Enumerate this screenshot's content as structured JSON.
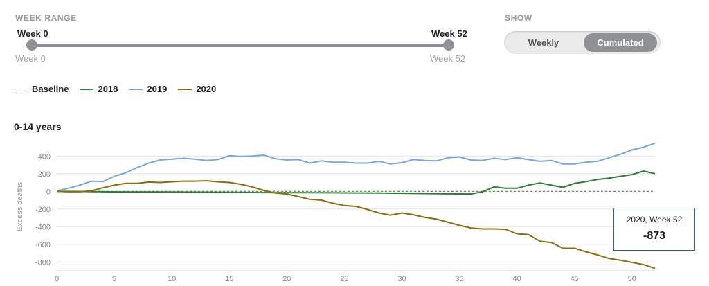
{
  "controls": {
    "week_range_label": "WEEK RANGE",
    "show_label": "SHOW",
    "slider": {
      "min_top": "Week 0",
      "max_top": "Week 52",
      "min_bottom": "Week 0",
      "max_bottom": "Week 52",
      "min_value": 0,
      "max_value": 52
    },
    "toggle": {
      "weekly": "Weekly",
      "cumulated": "Cumulated",
      "selected": "Cumulated"
    }
  },
  "legend": [
    {
      "label": "Baseline",
      "color": "#555555",
      "style": "dashed"
    },
    {
      "label": "2018",
      "color": "#2e7d32",
      "style": "solid"
    },
    {
      "label": "2019",
      "color": "#7aa6dc",
      "style": "solid"
    },
    {
      "label": "2020",
      "color": "#8a6d12",
      "style": "solid"
    }
  ],
  "chart_title": "0-14 years",
  "tooltip": {
    "title": "2020, Week 52",
    "value": "-873"
  },
  "chart_data": {
    "type": "line",
    "title": "0-14 years",
    "xlabel": "",
    "ylabel": "Excess deaths",
    "xlim": [
      0,
      52
    ],
    "ylim": [
      -900,
      520
    ],
    "x_ticks": [
      0,
      5,
      10,
      15,
      20,
      25,
      30,
      35,
      40,
      45,
      50
    ],
    "y_ticks": [
      400,
      200,
      0,
      -200,
      -400,
      -600,
      -800
    ],
    "grid": true,
    "baseline": 0,
    "series": [
      {
        "name": "2018",
        "color": "#2e7d32",
        "x": [
          0,
          2,
          4,
          6,
          8,
          10,
          12,
          14,
          16,
          18,
          20,
          22,
          24,
          26,
          28,
          30,
          32,
          34,
          36,
          37,
          38,
          39,
          40,
          41,
          42,
          43,
          44,
          45,
          46,
          47,
          48,
          49,
          50,
          51,
          52
        ],
        "values": [
          0,
          -2,
          -5,
          -7,
          -8,
          -9,
          -10,
          -12,
          -13,
          -14,
          -15,
          -16,
          -17,
          -18,
          -20,
          -22,
          -25,
          -28,
          -30,
          -5,
          50,
          35,
          35,
          70,
          95,
          70,
          45,
          90,
          110,
          135,
          150,
          170,
          190,
          230,
          200
        ]
      },
      {
        "name": "2019",
        "color": "#7aa6dc",
        "x": [
          0,
          1,
          2,
          3,
          4,
          5,
          6,
          7,
          8,
          9,
          10,
          11,
          12,
          13,
          14,
          15,
          16,
          17,
          18,
          19,
          20,
          21,
          22,
          23,
          24,
          25,
          26,
          27,
          28,
          29,
          30,
          31,
          32,
          33,
          34,
          35,
          36,
          37,
          38,
          39,
          40,
          41,
          42,
          43,
          44,
          45,
          46,
          47,
          48,
          49,
          50,
          51,
          52
        ],
        "values": [
          5,
          35,
          70,
          115,
          110,
          170,
          210,
          270,
          320,
          355,
          365,
          375,
          365,
          350,
          360,
          405,
          395,
          400,
          410,
          370,
          355,
          360,
          320,
          345,
          330,
          330,
          320,
          320,
          340,
          310,
          325,
          360,
          350,
          345,
          380,
          390,
          355,
          350,
          375,
          360,
          380,
          360,
          340,
          350,
          310,
          310,
          330,
          340,
          380,
          420,
          470,
          500,
          545
        ]
      },
      {
        "name": "2020",
        "color": "#8a6d12",
        "x": [
          0,
          1,
          2,
          3,
          4,
          5,
          6,
          7,
          8,
          9,
          10,
          11,
          12,
          13,
          14,
          15,
          16,
          17,
          18,
          19,
          20,
          21,
          22,
          23,
          24,
          25,
          26,
          27,
          28,
          29,
          30,
          31,
          32,
          33,
          34,
          35,
          36,
          37,
          38,
          39,
          40,
          41,
          42,
          43,
          44,
          45,
          46,
          47,
          48,
          49,
          50,
          51,
          52
        ],
        "values": [
          0,
          -5,
          -5,
          5,
          40,
          70,
          90,
          90,
          105,
          100,
          108,
          115,
          115,
          120,
          108,
          100,
          80,
          50,
          10,
          -20,
          -30,
          -60,
          -90,
          -100,
          -135,
          -160,
          -170,
          -205,
          -245,
          -270,
          -245,
          -265,
          -295,
          -315,
          -350,
          -385,
          -415,
          -425,
          -425,
          -430,
          -480,
          -490,
          -565,
          -580,
          -645,
          -645,
          -685,
          -720,
          -760,
          -780,
          -805,
          -830,
          -873
        ]
      }
    ]
  }
}
